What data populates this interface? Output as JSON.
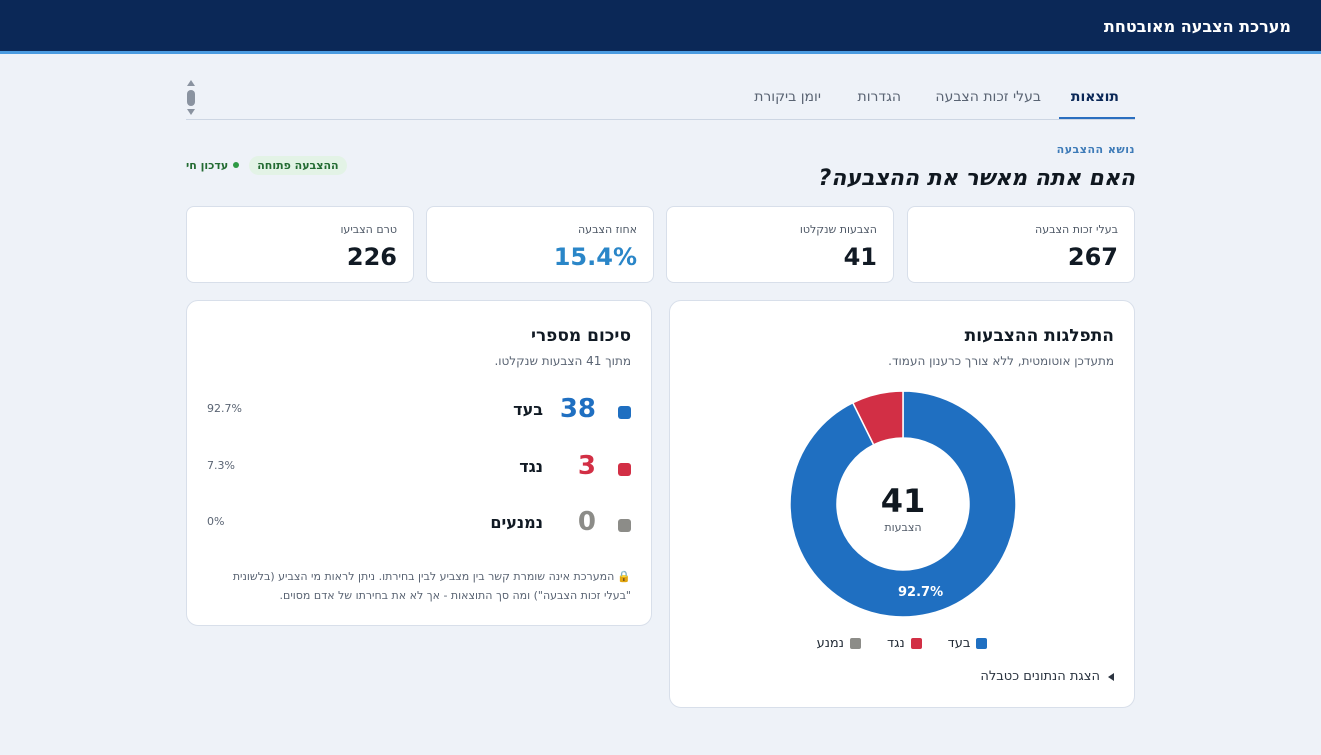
{
  "app": {
    "title": "מערכת הצבעה מאובטחת"
  },
  "tabs": [
    {
      "label": "תוצאות",
      "active": true
    },
    {
      "label": "בעלי זכות הצבעה",
      "active": false
    },
    {
      "label": "הגדרות",
      "active": false
    },
    {
      "label": "יומן ביקורת",
      "active": false
    }
  ],
  "vote": {
    "topic_label": "נושא ההצבעה",
    "question": "האם אתה מאשר את ההצבעה?",
    "status_badge": "ההצבעה פתוחה",
    "live_label": "עדכון חי"
  },
  "stats": [
    {
      "label": "בעלי זכות הצבעה",
      "value": "267"
    },
    {
      "label": "הצבעות שנקלטו",
      "value": "41"
    },
    {
      "label": "אחוז הצבעה",
      "value": "15.4%"
    },
    {
      "label": "טרם הצביעו",
      "value": "226"
    }
  ],
  "distribution": {
    "title": "התפלגות ההצבעות",
    "subtitle": "מתעדכן אוטומטית, ללא צורך כרענון העמוד.",
    "center_value": "41",
    "center_label": "הצבעות",
    "slice_label": "92.7%",
    "toggle_label": "הצגת הנתונים כטבלה"
  },
  "chart_data": {
    "type": "pie",
    "donut": true,
    "categories": [
      "בעד",
      "נגד",
      "נמנע"
    ],
    "values": [
      38,
      3,
      0
    ],
    "colors": [
      "#1f6fc1",
      "#d22f45",
      "#8c8c88"
    ],
    "center_value": 41,
    "center_label": "הצבעות",
    "data_labels": [
      "92.7%"
    ],
    "legend": "bottom"
  },
  "summary": {
    "title": "סיכום מספרי",
    "subtitle": "מתוך 41 הצבעות שנקלטו.",
    "rows": [
      {
        "name": "בעד",
        "count": "38",
        "pct": "92.7%",
        "color": "#1f6fc1"
      },
      {
        "name": "נגד",
        "count": "3",
        "pct": "7.3%",
        "color": "#d22f45"
      },
      {
        "name": "נמנעים",
        "count": "0",
        "pct": "0%",
        "color": "#8c8c88"
      }
    ],
    "note": "המערכת אינה שומרת קשר בין מצביע לבין בחירתו. ניתן לראות מי הצביע (בלשונית \"בעלי זכות הצבעה\") ומה סך התוצאות - אך לא את בחירתו של אדם מסוים."
  }
}
